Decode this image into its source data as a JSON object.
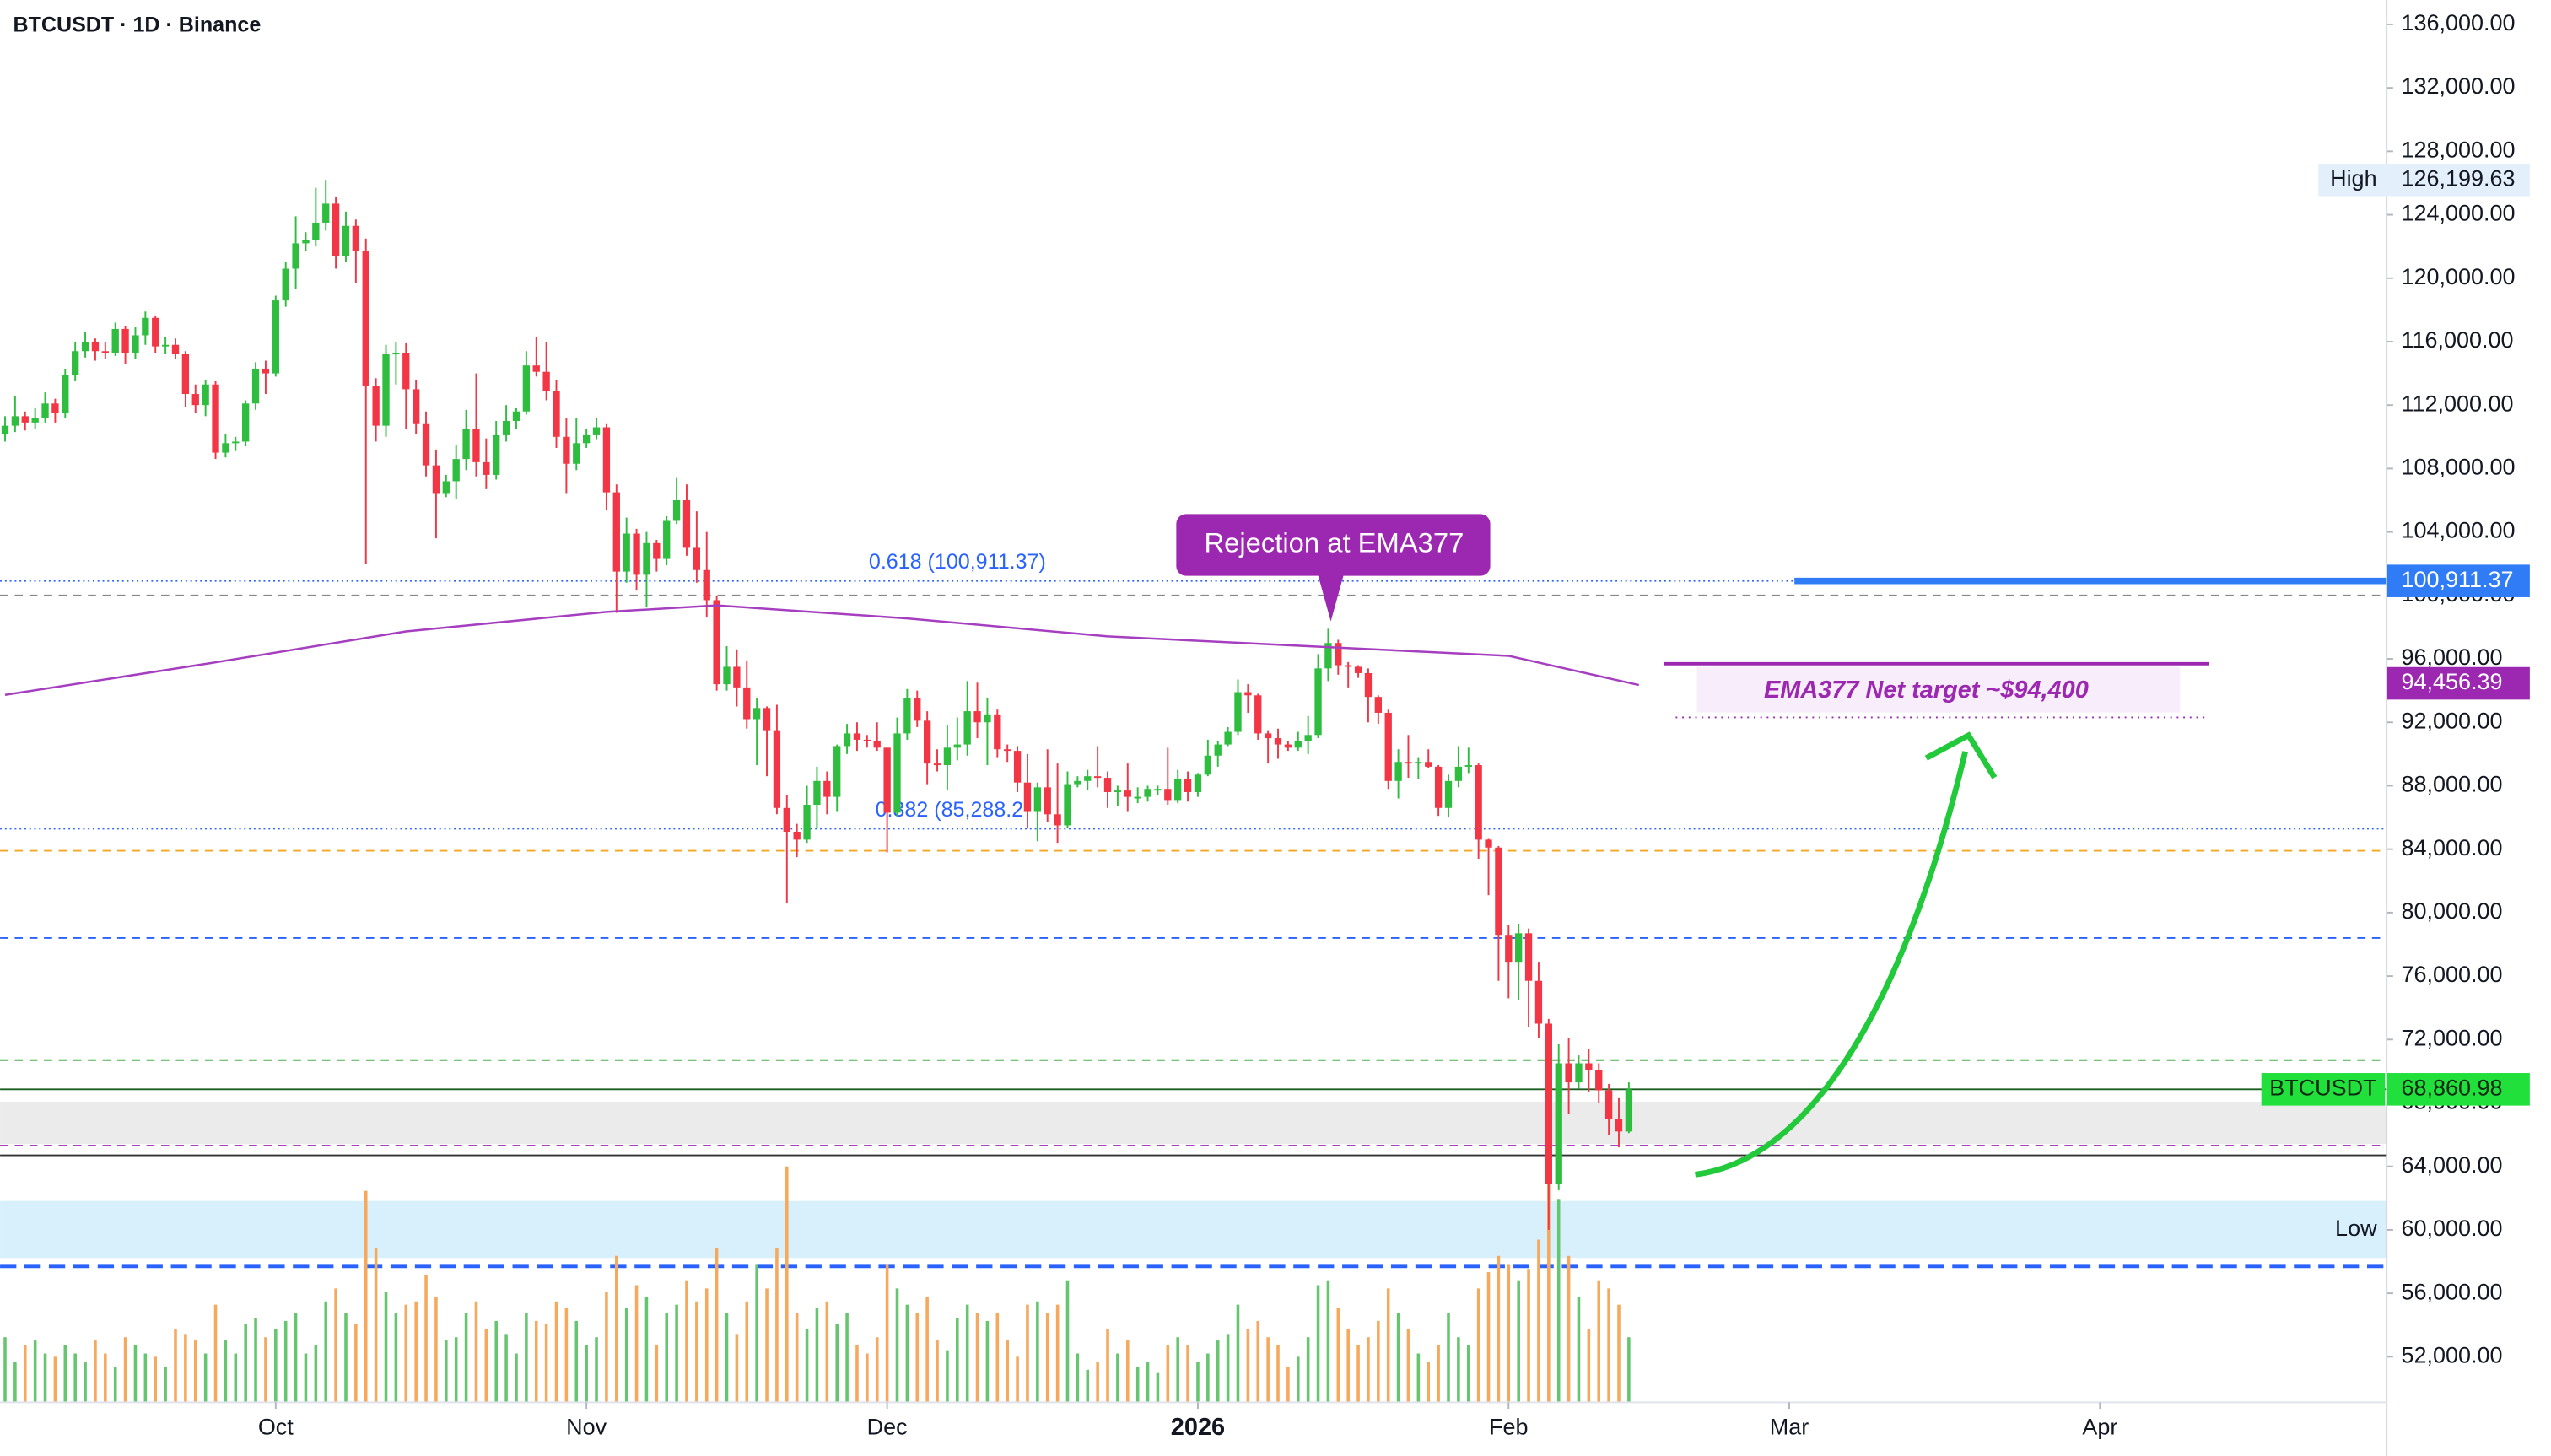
{
  "chart_data": {
    "type": "candlestick",
    "title": "BTCUSDT · 1D · Binance",
    "up_color": "#2ebd3f",
    "down_color": "#f23645",
    "volume_up_color": "#66c56f",
    "volume_down_color": "#f6a95c",
    "ohlc": [
      [
        110200,
        111300,
        109700,
        110700
      ],
      [
        110700,
        112600,
        110300,
        111300
      ],
      [
        111300,
        111600,
        110400,
        110900
      ],
      [
        110900,
        111800,
        110500,
        111200
      ],
      [
        111200,
        112800,
        110900,
        112100
      ],
      [
        112100,
        112400,
        110900,
        111500
      ],
      [
        111500,
        114300,
        111200,
        113900
      ],
      [
        113900,
        116000,
        113500,
        115400
      ],
      [
        115400,
        116600,
        115000,
        116000
      ],
      [
        116000,
        116200,
        114800,
        115400
      ],
      [
        115400,
        116000,
        114900,
        115300
      ],
      [
        115300,
        117200,
        115100,
        116800
      ],
      [
        116800,
        117000,
        114600,
        115300
      ],
      [
        115300,
        116900,
        114900,
        116400
      ],
      [
        116400,
        117900,
        115800,
        117500
      ],
      [
        117500,
        117600,
        115300,
        115700
      ],
      [
        115700,
        116300,
        115200,
        115800
      ],
      [
        115800,
        116200,
        114900,
        115200
      ],
      [
        115200,
        115400,
        111900,
        112700
      ],
      [
        112700,
        113300,
        111500,
        112000
      ],
      [
        112000,
        113600,
        111300,
        113300
      ],
      [
        113300,
        113500,
        108600,
        109000
      ],
      [
        109000,
        110200,
        108700,
        109600
      ],
      [
        109600,
        110000,
        109100,
        109700
      ],
      [
        109700,
        112300,
        109400,
        112100
      ],
      [
        112100,
        114700,
        111700,
        114300
      ],
      [
        114300,
        114800,
        112700,
        114000
      ],
      [
        114000,
        118900,
        113800,
        118600
      ],
      [
        118600,
        121000,
        118200,
        120600
      ],
      [
        120600,
        123900,
        119300,
        122200
      ],
      [
        122200,
        122900,
        121700,
        122400
      ],
      [
        122400,
        125700,
        122000,
        123500
      ],
      [
        123500,
        126199.63,
        123000,
        124700
      ],
      [
        124700,
        125100,
        120600,
        121400
      ],
      [
        121400,
        124200,
        121000,
        123300
      ],
      [
        123300,
        123700,
        119700,
        121700
      ],
      [
        121700,
        122500,
        102000,
        113200
      ],
      [
        113200,
        113700,
        109700,
        110700
      ],
      [
        110700,
        115800,
        110000,
        115200
      ],
      [
        115200,
        116000,
        113300,
        115300
      ],
      [
        115300,
        115900,
        110500,
        113000
      ],
      [
        113000,
        113600,
        110200,
        110800
      ],
      [
        110800,
        111600,
        107500,
        108200
      ],
      [
        108200,
        109200,
        103600,
        106400
      ],
      [
        106400,
        107600,
        106200,
        107200
      ],
      [
        107200,
        109500,
        106100,
        108600
      ],
      [
        108600,
        111700,
        107900,
        110500
      ],
      [
        110500,
        114000,
        107500,
        108400
      ],
      [
        108400,
        109900,
        106700,
        107600
      ],
      [
        107600,
        111000,
        107300,
        110100
      ],
      [
        110100,
        112000,
        109700,
        111000
      ],
      [
        111000,
        111800,
        110500,
        111600
      ],
      [
        111600,
        115400,
        111400,
        114500
      ],
      [
        114500,
        116300,
        113800,
        114100
      ],
      [
        114100,
        116000,
        112300,
        112900
      ],
      [
        112900,
        113600,
        109300,
        110000
      ],
      [
        110000,
        111200,
        106400,
        108300
      ],
      [
        108300,
        111200,
        107900,
        109600
      ],
      [
        109600,
        110500,
        109300,
        110100
      ],
      [
        110100,
        111200,
        109800,
        110600
      ],
      [
        110600,
        110800,
        105400,
        106500
      ],
      [
        106500,
        107000,
        98900,
        101500
      ],
      [
        101500,
        104900,
        100800,
        103900
      ],
      [
        103900,
        104200,
        100300,
        101300
      ],
      [
        101300,
        104000,
        99300,
        103300
      ],
      [
        103300,
        103500,
        101500,
        102300
      ],
      [
        102300,
        105000,
        101900,
        104700
      ],
      [
        104700,
        107400,
        104500,
        106000
      ],
      [
        106000,
        107000,
        102500,
        103000
      ],
      [
        103000,
        105300,
        100800,
        101600
      ],
      [
        101600,
        104000,
        98600,
        99700
      ],
      [
        99700,
        100000,
        94000,
        94400
      ],
      [
        94400,
        96800,
        94000,
        95500
      ],
      [
        95500,
        96600,
        93000,
        94200
      ],
      [
        94200,
        95900,
        91600,
        92200
      ],
      [
        92200,
        93500,
        89300,
        92900
      ],
      [
        92900,
        93000,
        88600,
        91500
      ],
      [
        91500,
        93100,
        86200,
        86600
      ],
      [
        86600,
        87400,
        80600,
        85100
      ],
      [
        85100,
        85600,
        83500,
        84600
      ],
      [
        84600,
        88000,
        84400,
        86800
      ],
      [
        86800,
        89200,
        85300,
        88300
      ],
      [
        88300,
        88900,
        86200,
        87300
      ],
      [
        87300,
        90600,
        86400,
        90500
      ],
      [
        90500,
        91900,
        90000,
        91300
      ],
      [
        91300,
        92000,
        90200,
        90900
      ],
      [
        90900,
        91200,
        90400,
        90800
      ],
      [
        90800,
        92000,
        90200,
        90400
      ],
      [
        90400,
        90400,
        83800,
        86300
      ],
      [
        86300,
        92300,
        86100,
        91300
      ],
      [
        91300,
        94100,
        90900,
        93500
      ],
      [
        93500,
        94000,
        91700,
        92100
      ],
      [
        92100,
        92700,
        88100,
        89400
      ],
      [
        89400,
        90300,
        88900,
        89300
      ],
      [
        89300,
        91800,
        87700,
        90400
      ],
      [
        90400,
        92300,
        89600,
        90600
      ],
      [
        90600,
        94600,
        89900,
        92700
      ],
      [
        92700,
        94500,
        91000,
        92000
      ],
      [
        92000,
        93500,
        89300,
        92500
      ],
      [
        92500,
        92800,
        89800,
        90300
      ],
      [
        90300,
        90600,
        89500,
        90200
      ],
      [
        90200,
        90500,
        87600,
        88200
      ],
      [
        88200,
        90000,
        85300,
        86400
      ],
      [
        86400,
        88200,
        84500,
        87900
      ],
      [
        87900,
        90300,
        85700,
        86200
      ],
      [
        86200,
        89400,
        84400,
        85500
      ],
      [
        85500,
        88900,
        85300,
        88100
      ],
      [
        88100,
        88600,
        87900,
        88300
      ],
      [
        88300,
        89000,
        87700,
        88600
      ],
      [
        88600,
        90500,
        87900,
        88500
      ],
      [
        88500,
        88900,
        86600,
        87600
      ],
      [
        87600,
        88000,
        86700,
        87700
      ],
      [
        87700,
        89400,
        86400,
        87300
      ],
      [
        87300,
        87900,
        86900,
        87300
      ],
      [
        87300,
        88000,
        87000,
        87800
      ],
      [
        87800,
        88000,
        87400,
        87800
      ],
      [
        87800,
        90400,
        86800,
        87100
      ],
      [
        87100,
        89000,
        86900,
        88400
      ],
      [
        88400,
        88900,
        87000,
        87600
      ],
      [
        87600,
        88800,
        87300,
        88700
      ],
      [
        88700,
        90900,
        88600,
        89900
      ],
      [
        89900,
        90800,
        89200,
        90600
      ],
      [
        90600,
        91700,
        90500,
        91400
      ],
      [
        91400,
        94700,
        91200,
        93900
      ],
      [
        93900,
        94400,
        92600,
        93700
      ],
      [
        93700,
        93800,
        90900,
        91300
      ],
      [
        91300,
        91500,
        89400,
        91000
      ],
      [
        91000,
        91600,
        89700,
        90600
      ],
      [
        90600,
        90800,
        90200,
        90400
      ],
      [
        90400,
        91400,
        90200,
        90800
      ],
      [
        90800,
        92400,
        90000,
        91200
      ],
      [
        91200,
        96300,
        91000,
        95400
      ],
      [
        95400,
        97900,
        94600,
        97000
      ],
      [
        97000,
        97200,
        95000,
        95600
      ],
      [
        95600,
        95800,
        94200,
        95500
      ],
      [
        95500,
        95600,
        94800,
        95100
      ],
      [
        95100,
        95400,
        92000,
        93600
      ],
      [
        93600,
        93700,
        91900,
        92600
      ],
      [
        92600,
        92800,
        87800,
        88300
      ],
      [
        88300,
        90300,
        87200,
        89500
      ],
      [
        89500,
        91200,
        88500,
        89400
      ],
      [
        89400,
        89800,
        88400,
        89500
      ],
      [
        89500,
        90300,
        89100,
        89200
      ],
      [
        89200,
        89300,
        86100,
        86600
      ],
      [
        86600,
        88700,
        86000,
        88300
      ],
      [
        88300,
        90500,
        87900,
        89200
      ],
      [
        89200,
        90400,
        88800,
        89300
      ],
      [
        89300,
        89400,
        83400,
        84600
      ],
      [
        84600,
        84700,
        81100,
        84100
      ],
      [
        84100,
        84200,
        75700,
        78600
      ],
      [
        78600,
        79200,
        74600,
        76900
      ],
      [
        76900,
        79300,
        74500,
        78700
      ],
      [
        78700,
        79000,
        72800,
        75700
      ],
      [
        75700,
        76900,
        72100,
        73000
      ],
      [
        73000,
        73300,
        60000,
        62900
      ],
      [
        62900,
        71700,
        62500,
        70500
      ],
      [
        70500,
        72100,
        67300,
        69300
      ],
      [
        69300,
        71000,
        68900,
        70500
      ],
      [
        70500,
        71400,
        68700,
        70100
      ],
      [
        70100,
        70500,
        68000,
        68800
      ],
      [
        68800,
        69200,
        66000,
        67000
      ],
      [
        67000,
        68300,
        65200,
        66200
      ],
      [
        66200,
        69300,
        66100,
        68860.98
      ]
    ],
    "volume": [
      40,
      25,
      35,
      38,
      30,
      28,
      35,
      30,
      25,
      38,
      30,
      22,
      40,
      35,
      30,
      28,
      22,
      45,
      42,
      38,
      30,
      60,
      38,
      30,
      48,
      52,
      40,
      45,
      50,
      55,
      30,
      35,
      62,
      70,
      55,
      48,
      130,
      95,
      68,
      55,
      60,
      62,
      78,
      65,
      38,
      40,
      55,
      62,
      45,
      50,
      42,
      30,
      55,
      50,
      48,
      62,
      58,
      50,
      35,
      40,
      68,
      90,
      58,
      72,
      65,
      35,
      55,
      60,
      75,
      62,
      70,
      95,
      55,
      42,
      62,
      85,
      70,
      95,
      145,
      55,
      45,
      58,
      62,
      48,
      55,
      35,
      30,
      40,
      85,
      70,
      60,
      55,
      65,
      38,
      32,
      52,
      60,
      55,
      50,
      55,
      38,
      28,
      60,
      62,
      55,
      60,
      75,
      30,
      20,
      25,
      45,
      30,
      38,
      22,
      25,
      18,
      35,
      40,
      35,
      25,
      30,
      38,
      42,
      60,
      45,
      50,
      40,
      35,
      22,
      28,
      40,
      72,
      75,
      58,
      45,
      35,
      40,
      50,
      70,
      55,
      45,
      30,
      25,
      35,
      55,
      40,
      35,
      70,
      80,
      90,
      85,
      75,
      82,
      100,
      150,
      125,
      90,
      65,
      45,
      75,
      70,
      60,
      40
    ],
    "volume_lim": [
      0,
      160
    ],
    "xlim": [
      -0.5,
      237.6
    ],
    "xticks": [
      {
        "value": 27,
        "label": "Oct"
      },
      {
        "value": 58,
        "label": "Nov"
      },
      {
        "value": 88,
        "label": "Dec"
      },
      {
        "value": 119,
        "label": "2026"
      },
      {
        "value": 150,
        "label": "Feb"
      },
      {
        "value": 178,
        "label": "Mar"
      },
      {
        "value": 209,
        "label": "Apr"
      }
    ],
    "ylim": [
      49128,
      137538
    ],
    "yticks": [
      {
        "value": 52000,
        "label": "52,000.00"
      },
      {
        "value": 56000,
        "label": "56,000.00"
      },
      {
        "value": 60000,
        "label": "60,000.00"
      },
      {
        "value": 64000,
        "label": "64,000.00"
      },
      {
        "value": 68000,
        "label": "68,000.00"
      },
      {
        "value": 72000,
        "label": "72,000.00"
      },
      {
        "value": 76000,
        "label": "76,000.00"
      },
      {
        "value": 80000,
        "label": "80,000.00"
      },
      {
        "value": 84000,
        "label": "84,000.00"
      },
      {
        "value": 88000,
        "label": "88,000.00"
      },
      {
        "value": 92000,
        "label": "92,000.00"
      },
      {
        "value": 96000,
        "label": "96,000.00"
      },
      {
        "value": 100000,
        "label": "100,000.00"
      },
      {
        "value": 104000,
        "label": "104,000.00"
      },
      {
        "value": 108000,
        "label": "108,000.00"
      },
      {
        "value": 112000,
        "label": "112,000.00"
      },
      {
        "value": 116000,
        "label": "116,000.00"
      },
      {
        "value": 120000,
        "label": "120,000.00"
      },
      {
        "value": 124000,
        "label": "124,000.00"
      },
      {
        "value": 128000,
        "label": "128,000.00"
      },
      {
        "value": 132000,
        "label": "132,000.00"
      },
      {
        "value": 136000,
        "label": "136,000.00"
      }
    ],
    "ema": {
      "name": "EMA377",
      "color": "#a53fc0",
      "x": [
        0,
        20,
        40,
        60,
        71,
        90,
        110,
        130,
        150,
        163
      ],
      "values": [
        93730,
        95680,
        97730,
        98960,
        99370,
        98550,
        97420,
        96800,
        96190,
        94350
      ]
    },
    "zones": [
      {
        "from": 65410,
        "to": 68080,
        "color": "#ebebeb"
      },
      {
        "from": 58230,
        "to": 61820,
        "color": "#d8effc"
      }
    ],
    "levels": [
      {
        "value": 100911.37,
        "color": "#2962ff",
        "style": "dotted",
        "label": "0.618 (100,911.37)"
      },
      {
        "value": 100911.37,
        "color": "#2f7cf6",
        "style": "thick"
      },
      {
        "value": 100000,
        "color": "#888888",
        "style": "dashed"
      },
      {
        "value": 85288,
        "color": "#2962ff",
        "style": "dotted",
        "label": "0.382 (85,288.2"
      },
      {
        "value": 83900,
        "color": "#f5a623",
        "style": "dashed"
      },
      {
        "value": 78400,
        "color": "#2962ff",
        "style": "dashed"
      },
      {
        "value": 70700,
        "color": "#4caf50",
        "style": "dashed"
      },
      {
        "value": 68860.98,
        "color": "#1b5e20",
        "style": "solid"
      },
      {
        "value": 65310,
        "color": "#9c27b0",
        "style": "dashed"
      },
      {
        "value": 64700,
        "color": "#333333",
        "style": "solid"
      },
      {
        "value": 57720,
        "color": "#2962ff",
        "style": "dashed-thick"
      }
    ],
    "price_labels": [
      {
        "name": "High",
        "value": 126199.63,
        "label": "126,199.63",
        "bg": "#e3f0fb",
        "fg": "#131722"
      },
      {
        "value": 100911.37,
        "label": "100,911.37",
        "bg": "#2f7cf6",
        "fg": "#ffffff"
      },
      {
        "value": 94456.39,
        "label": "94,456.39",
        "bg": "#9c27b0",
        "fg": "#ffffff"
      },
      {
        "name": "BTCUSDT",
        "value": 68860.98,
        "label": "68,860.98",
        "bg": "#22e03c",
        "fg": "#0b2a0f"
      },
      {
        "name": "Low",
        "value": 60000
      }
    ],
    "annotations": [
      "Rejection at EMA377",
      "EMA377 Net target ~$94,400"
    ]
  }
}
